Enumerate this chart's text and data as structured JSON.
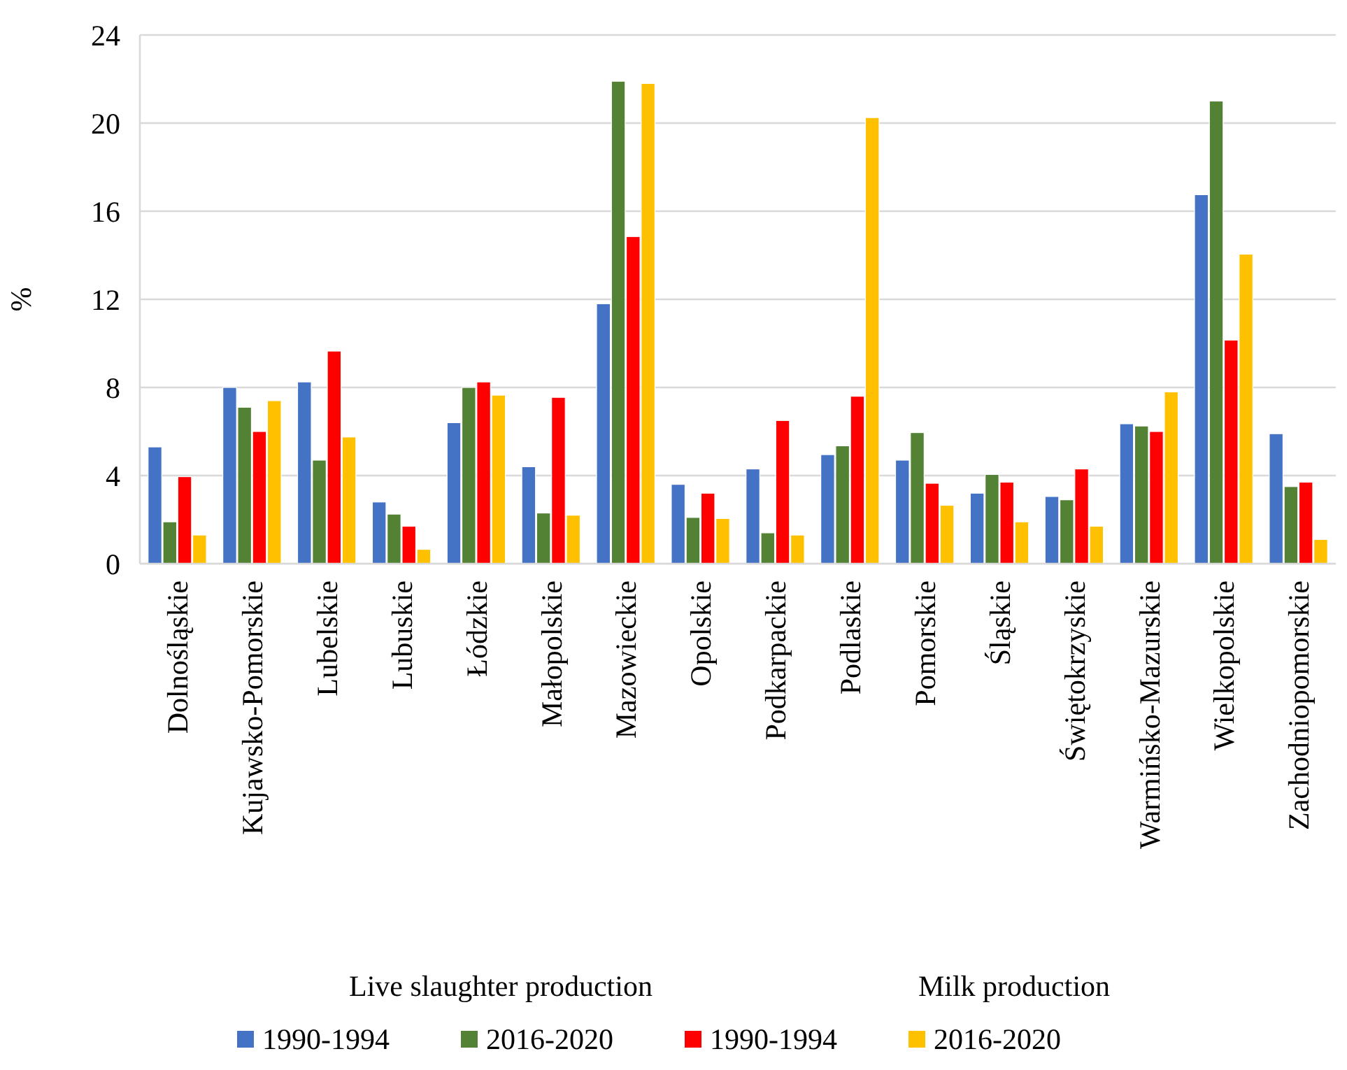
{
  "chart_data": {
    "type": "bar",
    "ylabel": "%",
    "categories": [
      "Dolnośląskie",
      "Kujawsko-Pomorskie",
      "Lubelskie",
      "Lubuskie",
      "Łódzkie",
      "Małopolskie",
      "Mazowieckie",
      "Opolskie",
      "Podkarpackie",
      "Podlaskie",
      "Pomorskie",
      "Śląskie",
      "Świętokrzyskie",
      "Warmińsko-Mazurskie",
      "Wielkopolskie",
      "Zachodniopomorskie"
    ],
    "series": [
      {
        "name": "1990-1994",
        "color": "#4472c4",
        "values": [
          5.3,
          8.0,
          8.25,
          2.8,
          6.4,
          4.4,
          11.8,
          3.6,
          4.3,
          4.95,
          4.7,
          3.2,
          3.05,
          6.35,
          16.75,
          5.9
        ]
      },
      {
        "name": "2016-2020",
        "color": "#548235",
        "values": [
          1.9,
          7.1,
          4.7,
          2.25,
          8.0,
          2.3,
          21.9,
          2.1,
          1.4,
          5.35,
          5.95,
          4.05,
          2.9,
          6.25,
          21.0,
          3.5
        ]
      },
      {
        "name": "1990-1994",
        "color": "#ff0000",
        "values": [
          3.95,
          6.0,
          9.65,
          1.7,
          8.25,
          7.55,
          14.85,
          3.2,
          6.5,
          7.6,
          3.65,
          3.7,
          4.3,
          6.0,
          10.15,
          3.7
        ]
      },
      {
        "name": "2016-2020",
        "color": "#ffc000",
        "values": [
          1.3,
          7.4,
          5.75,
          0.65,
          7.65,
          2.2,
          21.8,
          2.05,
          1.3,
          20.25,
          2.65,
          1.9,
          1.7,
          7.8,
          14.05,
          1.1
        ]
      }
    ],
    "annotations": [
      "Live slaughter production",
      "Milk production"
    ],
    "ylim": [
      0,
      24
    ],
    "yticks": [
      0,
      4,
      8,
      12,
      16,
      20,
      24
    ],
    "grid": "y",
    "legend": "bottom"
  }
}
